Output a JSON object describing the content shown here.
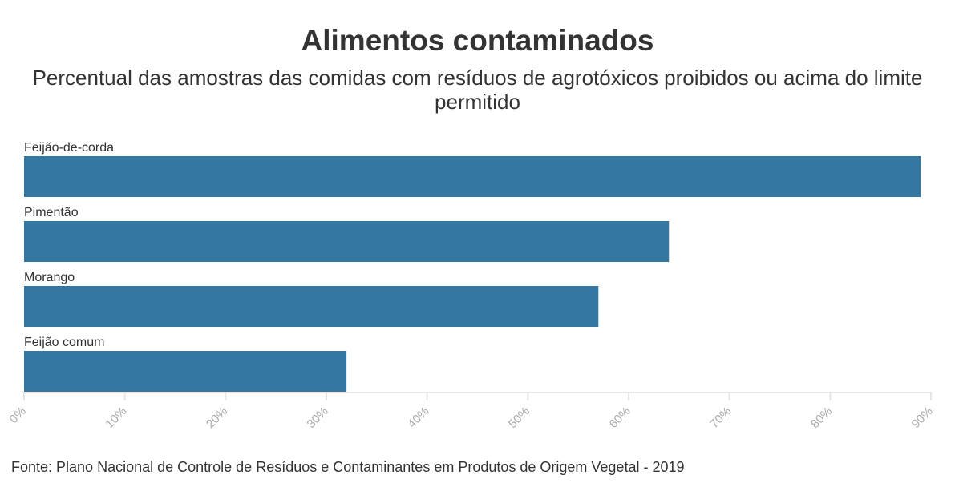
{
  "chart_data": {
    "type": "bar",
    "orientation": "horizontal",
    "title": "Alimentos contaminados",
    "subtitle": "Percentual das amostras das comidas com resíduos de agrotóxicos proibidos ou acima do limite permitido",
    "categories": [
      "Feijão-de-corda",
      "Pimentão",
      "Morango",
      "Feijão comum"
    ],
    "values": [
      89,
      64,
      57,
      32
    ],
    "unit": "%",
    "xlim": [
      0,
      90
    ],
    "xticks": [
      0,
      10,
      20,
      30,
      40,
      50,
      60,
      70,
      80,
      90
    ],
    "xtick_labels": [
      "0%",
      "10%",
      "20%",
      "30%",
      "40%",
      "50%",
      "60%",
      "70%",
      "80%",
      "90%"
    ],
    "xlabel": "",
    "ylabel": "",
    "grid": false,
    "bar_color": "#3477a0",
    "source": "Fonte: Plano Nacional de Controle de Resíduos e Contaminantes em Produtos de Origem Vegetal - 2019"
  }
}
